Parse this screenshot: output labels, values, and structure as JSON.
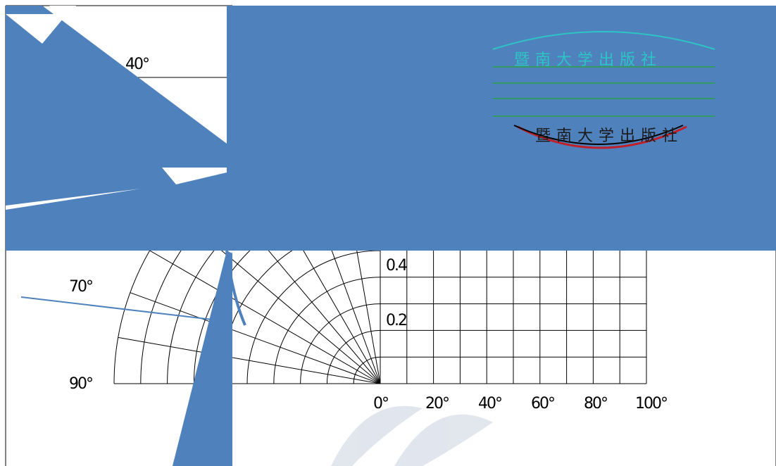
{
  "diagram": {
    "polar_angle_labels": [
      "40°",
      "70°",
      "90°"
    ],
    "radial_scale_labels": [
      "0.4",
      "0.2"
    ],
    "bottom_axis_labels": [
      "0°",
      "20°",
      "40°",
      "60°",
      "80°",
      "100°"
    ],
    "colors": {
      "overlay": "#4f81bd",
      "grid": "#000000",
      "background": "#ffffff",
      "seal_cyan": "#2ec4c4",
      "seal_green": "#2f9e56",
      "seal_red": "#c0202a",
      "watermark": "#d5dbe6"
    }
  },
  "seal": {
    "top_text": "暨南大学出版社",
    "bottom_text": "暨南大学出版社"
  }
}
